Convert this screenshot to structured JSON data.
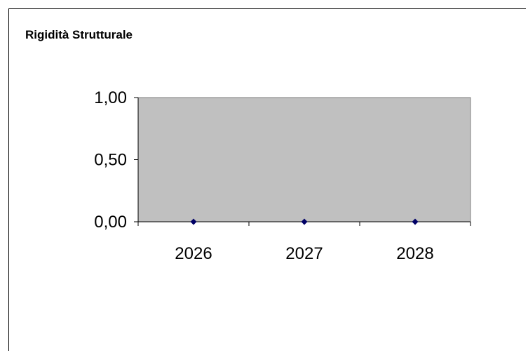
{
  "chart_data": {
    "type": "scatter",
    "title": "Rigidità Strutturale",
    "xlabel": "",
    "ylabel": "",
    "categories": [
      "2026",
      "2027",
      "2028"
    ],
    "series": [
      {
        "values": [
          0,
          0,
          0
        ]
      }
    ],
    "ylim": [
      0,
      1
    ],
    "y_ticks": [
      "0,00",
      "0,50",
      "1,00"
    ],
    "y_tick_values": [
      0,
      0.5,
      1
    ],
    "grid": false,
    "legend": "none",
    "colors": {
      "plot_background": "#c0c0c0",
      "marker": "#000066",
      "axis": "#000000"
    }
  }
}
